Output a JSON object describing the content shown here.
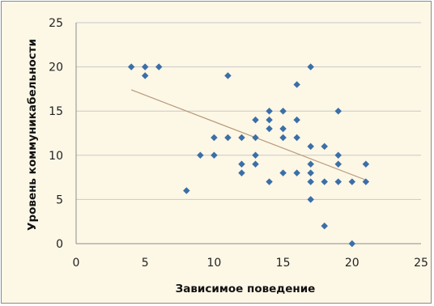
{
  "chart_data": {
    "type": "scatter",
    "title": "",
    "xlabel": "Зависимое поведение",
    "ylabel": "Уровень коммуникабельности",
    "xlim": [
      0,
      25
    ],
    "ylim": [
      0,
      25
    ],
    "x_ticks": [
      0,
      5,
      10,
      15,
      20,
      25
    ],
    "y_ticks": [
      0,
      5,
      10,
      15,
      20,
      25
    ],
    "x_tick_labels": [
      "0",
      "5",
      "10",
      "15",
      "20",
      "25"
    ],
    "y_tick_labels": [
      "0",
      "5",
      "10",
      "15",
      "20",
      "25"
    ],
    "grid": "horizontal",
    "legend": "none",
    "colors": {
      "points": "#3a6fa8",
      "trendline": "#b89a7a",
      "background": "#fdf7e6",
      "grid": "#c9c9c9"
    },
    "series": [
      {
        "points": [
          [
            4,
            20
          ],
          [
            5,
            20
          ],
          [
            5,
            19
          ],
          [
            6,
            20
          ],
          [
            8,
            6
          ],
          [
            9,
            10
          ],
          [
            10,
            12
          ],
          [
            10,
            10
          ],
          [
            11,
            19
          ],
          [
            11,
            12
          ],
          [
            12,
            12
          ],
          [
            12,
            9
          ],
          [
            12,
            8
          ],
          [
            13,
            14
          ],
          [
            13,
            12
          ],
          [
            13,
            10
          ],
          [
            13,
            9
          ],
          [
            14,
            15
          ],
          [
            14,
            14
          ],
          [
            14,
            13
          ],
          [
            14,
            7
          ],
          [
            15,
            15
          ],
          [
            15,
            13
          ],
          [
            15,
            12
          ],
          [
            15,
            8
          ],
          [
            16,
            18
          ],
          [
            16,
            14
          ],
          [
            16,
            12
          ],
          [
            16,
            8
          ],
          [
            17,
            20
          ],
          [
            17,
            11
          ],
          [
            17,
            9
          ],
          [
            17,
            8
          ],
          [
            17,
            7
          ],
          [
            17,
            5
          ],
          [
            18,
            11
          ],
          [
            18,
            7
          ],
          [
            18,
            2
          ],
          [
            19,
            15
          ],
          [
            19,
            10
          ],
          [
            19,
            9
          ],
          [
            19,
            7
          ],
          [
            20,
            7
          ],
          [
            20,
            0
          ],
          [
            21,
            9
          ],
          [
            21,
            7
          ]
        ]
      }
    ],
    "trendline": {
      "type": "linear",
      "x": [
        4,
        21
      ],
      "y": [
        17.4,
        7.2
      ]
    }
  }
}
